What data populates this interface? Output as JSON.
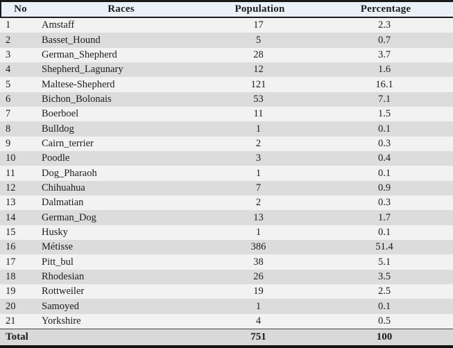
{
  "table": {
    "columns": [
      "No",
      "Races",
      "Population",
      "Percentage"
    ],
    "rows": [
      {
        "no": "1",
        "race": "Amstaff",
        "population": "17",
        "percentage": "2.3"
      },
      {
        "no": "2",
        "race": "Basset_Hound",
        "population": "5",
        "percentage": "0.7"
      },
      {
        "no": "3",
        "race": "German_Shepherd",
        "population": "28",
        "percentage": "3.7"
      },
      {
        "no": "4",
        "race": "Shepherd_Lagunary",
        "population": "12",
        "percentage": "1.6"
      },
      {
        "no": "5",
        "race": "Maltese-Shepherd",
        "population": "121",
        "percentage": "16.1"
      },
      {
        "no": "6",
        "race": "Bichon_Bolonais",
        "population": "53",
        "percentage": "7.1"
      },
      {
        "no": "7",
        "race": "Boerboel",
        "population": "11",
        "percentage": "1.5"
      },
      {
        "no": "8",
        "race": "Bulldog",
        "population": "1",
        "percentage": "0.1"
      },
      {
        "no": "9",
        "race": "Cairn_terrier",
        "population": "2",
        "percentage": "0.3"
      },
      {
        "no": "10",
        "race": "Poodle",
        "population": "3",
        "percentage": "0.4"
      },
      {
        "no": "11",
        "race": "Dog_Pharaoh",
        "population": "1",
        "percentage": "0.1"
      },
      {
        "no": "12",
        "race": "Chihuahua",
        "population": "7",
        "percentage": "0.9"
      },
      {
        "no": "13",
        "race": "Dalmatian",
        "population": "2",
        "percentage": "0.3"
      },
      {
        "no": "14",
        "race": "German_Dog",
        "population": "13",
        "percentage": "1.7"
      },
      {
        "no": "15",
        "race": "Husky",
        "population": "1",
        "percentage": "0.1"
      },
      {
        "no": "16",
        "race": "Métisse",
        "population": "386",
        "percentage": "51.4"
      },
      {
        "no": "17",
        "race": "Pitt_bul",
        "population": "38",
        "percentage": "5.1"
      },
      {
        "no": "18",
        "race": "Rhodesian",
        "population": "26",
        "percentage": "3.5"
      },
      {
        "no": "19",
        "race": "Rottweiler",
        "population": "19",
        "percentage": "2.5"
      },
      {
        "no": "20",
        "race": "Samoyed",
        "population": "1",
        "percentage": "0.1"
      },
      {
        "no": "21",
        "race": "Yorkshire",
        "population": "4",
        "percentage": "0.5"
      }
    ],
    "total": {
      "label": "Total",
      "population": "751",
      "percentage": "100"
    }
  },
  "colors": {
    "header_bg": "#eaf1f9",
    "row_light": "#f2f2f2",
    "row_dark": "#dcdcdc",
    "total_bg": "#d9d9d9",
    "border": "#191919",
    "text": "#1c1c1c"
  }
}
